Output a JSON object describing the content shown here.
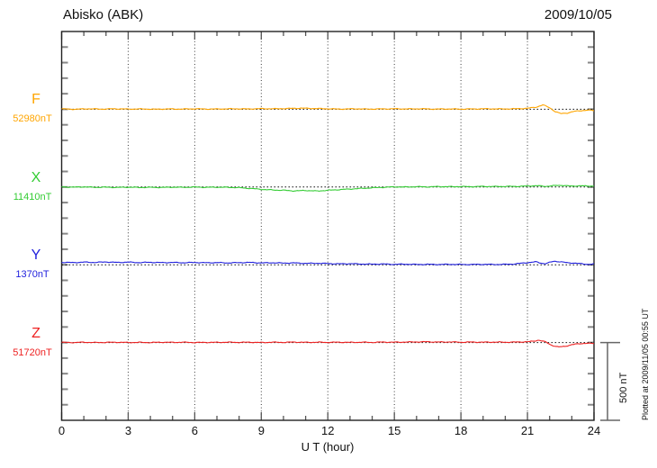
{
  "header": {
    "title": "Abisko (ABK)",
    "date": "2009/10/05"
  },
  "chart_data": {
    "type": "line",
    "title": "Abisko (ABK)",
    "date": "2009/10/05",
    "xlabel": "U T (hour)",
    "xlim": [
      0,
      24
    ],
    "x_ticks": [
      0,
      3,
      6,
      9,
      12,
      15,
      18,
      21,
      24
    ],
    "x_minor_tick_hours": 1,
    "y_minor_tick_nT": 100,
    "grid": "vertical dotted lines every 3 hours; dotted horizontal baseline per component",
    "legend_position": "left margin, one colored label per component",
    "scale_bar": {
      "label": "500 nT",
      "nT": 500
    },
    "footer_note": "Plotted at 2009/11/05 00:55 UT",
    "noise_nT": 3,
    "series": [
      {
        "name": "F",
        "baseline_label": "52980nT",
        "baseline_nT": 52980,
        "color": "#ffa500",
        "points": [
          [
            0,
            2
          ],
          [
            0.6,
            0
          ],
          [
            1.2,
            3
          ],
          [
            1.8,
            1
          ],
          [
            2.4,
            3
          ],
          [
            3,
            1
          ],
          [
            3.6,
            2
          ],
          [
            4.2,
            0
          ],
          [
            4.8,
            2
          ],
          [
            5.4,
            1
          ],
          [
            6,
            3
          ],
          [
            6.6,
            1
          ],
          [
            7.2,
            2
          ],
          [
            7.8,
            3
          ],
          [
            8.4,
            2
          ],
          [
            9,
            4
          ],
          [
            9.6,
            3
          ],
          [
            10.2,
            5
          ],
          [
            10.8,
            7
          ],
          [
            11.4,
            5
          ],
          [
            12,
            3
          ],
          [
            12.6,
            1
          ],
          [
            13.2,
            3
          ],
          [
            13.8,
            1
          ],
          [
            14.4,
            2
          ],
          [
            15,
            3
          ],
          [
            15.6,
            2
          ],
          [
            16.2,
            3
          ],
          [
            16.8,
            1
          ],
          [
            17.4,
            2
          ],
          [
            18,
            1
          ],
          [
            18.6,
            2
          ],
          [
            19.2,
            3
          ],
          [
            19.8,
            2
          ],
          [
            20.4,
            3
          ],
          [
            21,
            6
          ],
          [
            21.4,
            14
          ],
          [
            21.7,
            28
          ],
          [
            22,
            10
          ],
          [
            22.25,
            -15
          ],
          [
            22.5,
            -28
          ],
          [
            22.8,
            -24
          ],
          [
            23.1,
            -14
          ],
          [
            23.4,
            -9
          ],
          [
            23.7,
            -6
          ],
          [
            24,
            -8
          ]
        ]
      },
      {
        "name": "X",
        "baseline_label": "11410nT",
        "baseline_nT": 11410,
        "color": "#33cc33",
        "points": [
          [
            0,
            1
          ],
          [
            0.5,
            -1
          ],
          [
            1,
            1
          ],
          [
            1.5,
            -2
          ],
          [
            2,
            -1
          ],
          [
            2.5,
            -3
          ],
          [
            3,
            -1
          ],
          [
            3.5,
            -3
          ],
          [
            4,
            -2
          ],
          [
            4.5,
            -3
          ],
          [
            5,
            -1
          ],
          [
            5.5,
            -2
          ],
          [
            6,
            0
          ],
          [
            6.5,
            -2
          ],
          [
            7,
            -1
          ],
          [
            7.5,
            -2
          ],
          [
            8,
            -4
          ],
          [
            8.5,
            -9
          ],
          [
            9,
            -15
          ],
          [
            9.5,
            -19
          ],
          [
            10,
            -21
          ],
          [
            10.5,
            -25
          ],
          [
            11,
            -22
          ],
          [
            11.5,
            -26
          ],
          [
            12,
            -21
          ],
          [
            12.5,
            -17
          ],
          [
            13,
            -13
          ],
          [
            13.5,
            -9
          ],
          [
            14,
            -5
          ],
          [
            14.5,
            -2
          ],
          [
            15,
            1
          ],
          [
            15.5,
            0
          ],
          [
            16,
            2
          ],
          [
            16.5,
            1
          ],
          [
            17,
            3
          ],
          [
            17.5,
            2
          ],
          [
            18,
            3
          ],
          [
            18.5,
            2
          ],
          [
            19,
            4
          ],
          [
            19.5,
            3
          ],
          [
            20,
            4
          ],
          [
            20.5,
            4
          ],
          [
            21,
            6
          ],
          [
            21.4,
            9
          ],
          [
            21.8,
            4
          ],
          [
            22.2,
            9
          ],
          [
            22.6,
            11
          ],
          [
            23,
            5
          ],
          [
            23.4,
            9
          ],
          [
            23.7,
            5
          ],
          [
            24,
            7
          ]
        ]
      },
      {
        "name": "Y",
        "baseline_label": "1370nT",
        "baseline_nT": 1370,
        "color": "#2222dd",
        "points": [
          [
            0,
            16
          ],
          [
            0.5,
            14
          ],
          [
            1,
            17
          ],
          [
            1.5,
            15
          ],
          [
            2,
            18
          ],
          [
            2.5,
            15
          ],
          [
            3,
            17
          ],
          [
            3.5,
            14
          ],
          [
            4,
            16
          ],
          [
            4.5,
            14
          ],
          [
            5,
            15
          ],
          [
            5.5,
            13
          ],
          [
            6,
            15
          ],
          [
            6.5,
            13
          ],
          [
            7,
            14
          ],
          [
            7.5,
            12
          ],
          [
            8,
            14
          ],
          [
            8.5,
            15
          ],
          [
            9,
            12
          ],
          [
            9.5,
            13
          ],
          [
            10,
            11
          ],
          [
            10.5,
            12
          ],
          [
            11,
            9
          ],
          [
            11.5,
            10
          ],
          [
            12,
            8
          ],
          [
            12.5,
            6
          ],
          [
            13,
            7
          ],
          [
            13.5,
            5
          ],
          [
            14,
            4
          ],
          [
            14.5,
            5
          ],
          [
            15,
            3
          ],
          [
            15.5,
            4
          ],
          [
            16,
            2
          ],
          [
            16.5,
            3
          ],
          [
            17,
            2
          ],
          [
            17.5,
            3
          ],
          [
            18,
            2
          ],
          [
            18.5,
            2
          ],
          [
            19,
            3
          ],
          [
            19.5,
            2
          ],
          [
            20,
            3
          ],
          [
            20.4,
            5
          ],
          [
            20.8,
            11
          ],
          [
            21.1,
            15
          ],
          [
            21.4,
            19
          ],
          [
            21.6,
            11
          ],
          [
            21.8,
            7
          ],
          [
            22,
            15
          ],
          [
            22.2,
            23
          ],
          [
            22.5,
            19
          ],
          [
            22.8,
            13
          ],
          [
            23.1,
            11
          ],
          [
            23.4,
            7
          ],
          [
            23.7,
            3
          ],
          [
            24,
            5
          ]
        ]
      },
      {
        "name": "Z",
        "baseline_label": "51720nT",
        "baseline_nT": 51720,
        "color": "#ee2222",
        "points": [
          [
            0,
            1
          ],
          [
            0.5,
            0
          ],
          [
            1,
            2
          ],
          [
            1.5,
            0
          ],
          [
            2,
            1
          ],
          [
            2.5,
            2
          ],
          [
            3,
            0
          ],
          [
            3.5,
            1
          ],
          [
            4,
            0
          ],
          [
            4.5,
            2
          ],
          [
            5,
            1
          ],
          [
            5.5,
            2
          ],
          [
            6,
            0
          ],
          [
            6.5,
            1
          ],
          [
            7,
            1
          ],
          [
            7.5,
            2
          ],
          [
            8,
            1
          ],
          [
            8.5,
            2
          ],
          [
            9,
            0
          ],
          [
            9.5,
            2
          ],
          [
            10,
            1
          ],
          [
            10.5,
            3
          ],
          [
            11,
            1
          ],
          [
            11.5,
            2
          ],
          [
            12,
            1
          ],
          [
            12.5,
            2
          ],
          [
            13,
            1
          ],
          [
            13.5,
            2
          ],
          [
            14,
            1
          ],
          [
            14.5,
            3
          ],
          [
            15,
            2
          ],
          [
            15.5,
            3
          ],
          [
            16,
            4
          ],
          [
            16.5,
            5
          ],
          [
            17,
            3
          ],
          [
            17.5,
            4
          ],
          [
            18,
            2
          ],
          [
            18.5,
            3
          ],
          [
            19,
            2
          ],
          [
            19.5,
            3
          ],
          [
            20,
            2
          ],
          [
            20.5,
            3
          ],
          [
            21,
            5
          ],
          [
            21.3,
            9
          ],
          [
            21.5,
            16
          ],
          [
            21.8,
            5
          ],
          [
            22.1,
            -18
          ],
          [
            22.4,
            -29
          ],
          [
            22.7,
            -24
          ],
          [
            23,
            -14
          ],
          [
            23.3,
            -8
          ],
          [
            23.6,
            -5
          ],
          [
            24,
            -6
          ]
        ]
      }
    ]
  }
}
